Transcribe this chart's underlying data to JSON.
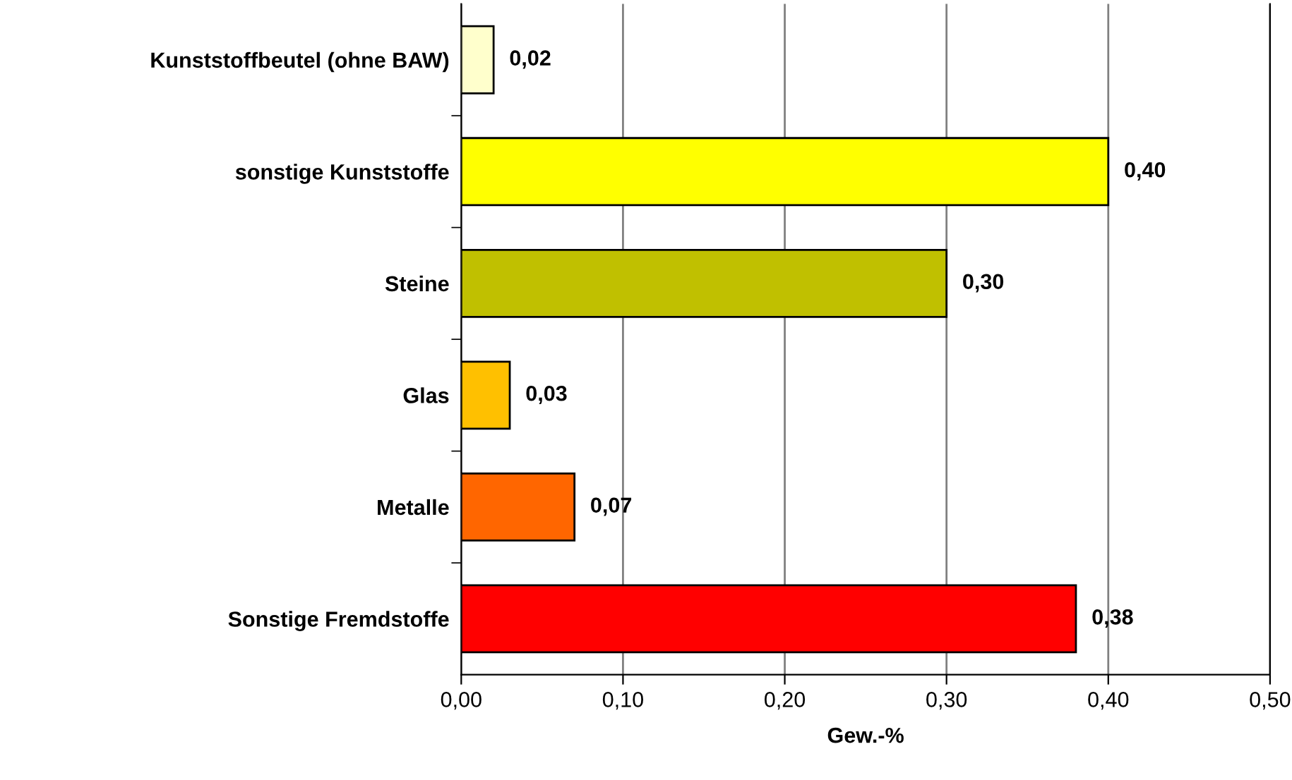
{
  "chart_data": {
    "type": "bar",
    "orientation": "horizontal",
    "xlabel": "Gew.-%",
    "categories": [
      "Kunststoffbeutel (ohne BAW)",
      "sonstige Kunststoffe",
      "Steine",
      "Glas",
      "Metalle",
      "Sonstige Fremdstoffe"
    ],
    "values": [
      0.02,
      0.4,
      0.3,
      0.03,
      0.07,
      0.38
    ],
    "value_labels": [
      "0,02",
      "0,40",
      "0,30",
      "0,03",
      "0,07",
      "0,38"
    ],
    "colors": [
      "#ffffcc",
      "#ffff00",
      "#c0c000",
      "#ffc000",
      "#ff6600",
      "#ff0000"
    ],
    "xlim": [
      0,
      0.5
    ],
    "xticks": [
      {
        "value": 0,
        "label": "0,00"
      },
      {
        "value": 0.1,
        "label": "0,10"
      },
      {
        "value": 0.2,
        "label": "0,20"
      },
      {
        "value": 0.3,
        "label": "0,30"
      },
      {
        "value": 0.4,
        "label": "0,40"
      },
      {
        "value": 0.5,
        "label": "0,50"
      }
    ],
    "grid": "x",
    "legend": false
  }
}
